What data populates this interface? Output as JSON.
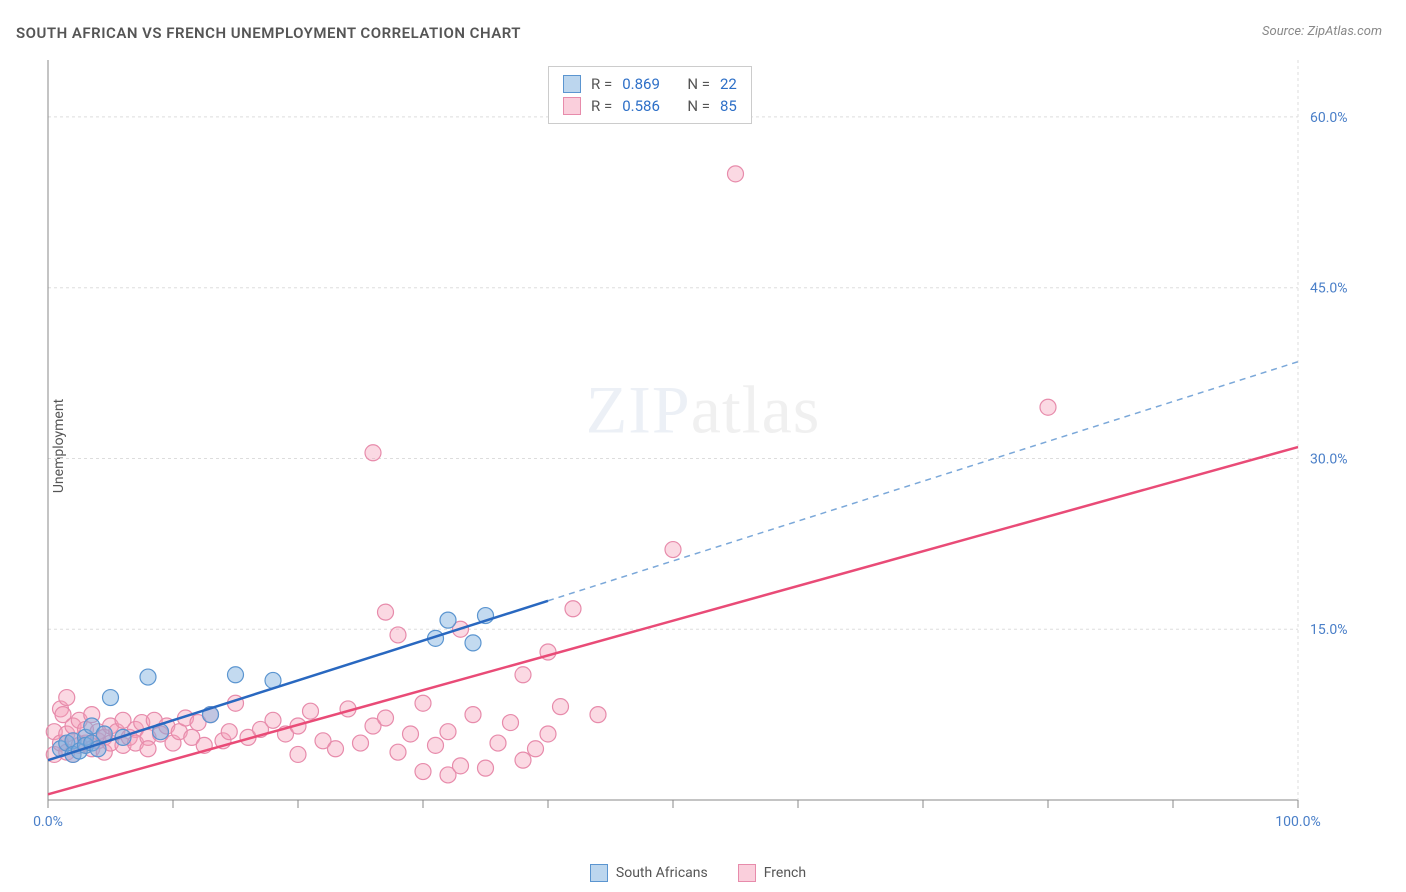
{
  "title": "SOUTH AFRICAN VS FRENCH UNEMPLOYMENT CORRELATION CHART",
  "source_label": "Source:",
  "source_name": "ZipAtlas.com",
  "y_axis_label": "Unemployment",
  "watermark_a": "ZIP",
  "watermark_b": "atlas",
  "chart": {
    "type": "scatter",
    "background_color": "#ffffff",
    "grid_color": "#dddddd",
    "xlim": [
      0,
      100
    ],
    "ylim": [
      0,
      65
    ],
    "x_ticks": [
      0,
      10,
      20,
      30,
      40,
      50,
      60,
      70,
      80,
      90,
      100
    ],
    "x_tick_labels": {
      "0": "0.0%",
      "100": "100.0%"
    },
    "y_ticks": [
      15,
      30,
      45,
      60
    ],
    "y_tick_labels": {
      "15": "15.0%",
      "30": "30.0%",
      "45": "45.0%",
      "60": "60.0%"
    },
    "series": {
      "south_africans": {
        "label": "South Africans",
        "color_fill": "rgba(122,174,222,0.45)",
        "color_stroke": "#5b95d0",
        "marker_radius": 8,
        "r_value": "0.869",
        "n_value": "22",
        "trend": {
          "x1": 0,
          "y1": 3.5,
          "x2": 40,
          "y2": 17.5,
          "color": "#2968c0",
          "dash_extend_x2": 100,
          "dash_extend_y2": 38.5
        },
        "points": [
          [
            1,
            4.5
          ],
          [
            1.5,
            5
          ],
          [
            2,
            5.2
          ],
          [
            2,
            4
          ],
          [
            2.5,
            4.3
          ],
          [
            3,
            5.5
          ],
          [
            3,
            4.8
          ],
          [
            3.5,
            5
          ],
          [
            3.5,
            6.5
          ],
          [
            4,
            4.5
          ],
          [
            4.5,
            5.8
          ],
          [
            5,
            9
          ],
          [
            6,
            5.5
          ],
          [
            8,
            10.8
          ],
          [
            9,
            6
          ],
          [
            13,
            7.5
          ],
          [
            15,
            11
          ],
          [
            18,
            10.5
          ],
          [
            31,
            14.2
          ],
          [
            32,
            15.8
          ],
          [
            34,
            13.8
          ],
          [
            35,
            16.2
          ]
        ]
      },
      "french": {
        "label": "French",
        "color_fill": "rgba(245,160,185,0.4)",
        "color_stroke": "#e78bab",
        "marker_radius": 8,
        "r_value": "0.586",
        "n_value": "85",
        "trend": {
          "x1": 0,
          "y1": 0.5,
          "x2": 100,
          "y2": 31,
          "color": "#e94b77"
        },
        "points": [
          [
            0.5,
            4
          ],
          [
            0.5,
            6
          ],
          [
            1,
            8
          ],
          [
            1,
            5
          ],
          [
            1.2,
            7.5
          ],
          [
            1.5,
            4.2
          ],
          [
            1.5,
            5.8
          ],
          [
            1.5,
            9
          ],
          [
            2,
            4
          ],
          [
            2,
            6.5
          ],
          [
            2,
            5.2
          ],
          [
            2.5,
            4.8
          ],
          [
            2.5,
            7
          ],
          [
            3,
            5
          ],
          [
            3,
            6.2
          ],
          [
            3.5,
            4.5
          ],
          [
            3.5,
            7.5
          ],
          [
            4,
            5.2
          ],
          [
            4,
            6
          ],
          [
            4.5,
            5.5
          ],
          [
            4.5,
            4.2
          ],
          [
            5,
            6.5
          ],
          [
            5,
            5
          ],
          [
            5.5,
            6
          ],
          [
            6,
            4.8
          ],
          [
            6,
            7
          ],
          [
            6.5,
            5.5
          ],
          [
            7,
            6.2
          ],
          [
            7,
            5
          ],
          [
            7.5,
            6.8
          ],
          [
            8,
            5.5
          ],
          [
            8,
            4.5
          ],
          [
            8.5,
            7
          ],
          [
            9,
            5.8
          ],
          [
            9.5,
            6.5
          ],
          [
            10,
            5
          ],
          [
            10.5,
            6
          ],
          [
            11,
            7.2
          ],
          [
            11.5,
            5.5
          ],
          [
            12,
            6.8
          ],
          [
            12.5,
            4.8
          ],
          [
            13,
            7.5
          ],
          [
            14,
            5.2
          ],
          [
            14.5,
            6
          ],
          [
            15,
            8.5
          ],
          [
            16,
            5.5
          ],
          [
            17,
            6.2
          ],
          [
            18,
            7
          ],
          [
            19,
            5.8
          ],
          [
            20,
            6.5
          ],
          [
            20,
            4
          ],
          [
            21,
            7.8
          ],
          [
            22,
            5.2
          ],
          [
            23,
            4.5
          ],
          [
            24,
            8
          ],
          [
            25,
            5
          ],
          [
            26,
            6.5
          ],
          [
            27,
            7.2
          ],
          [
            27,
            16.5
          ],
          [
            28,
            4.2
          ],
          [
            28,
            14.5
          ],
          [
            29,
            5.8
          ],
          [
            30,
            2.5
          ],
          [
            30,
            8.5
          ],
          [
            31,
            4.8
          ],
          [
            32,
            2.2
          ],
          [
            32,
            6
          ],
          [
            33,
            3
          ],
          [
            33,
            15
          ],
          [
            34,
            7.5
          ],
          [
            35,
            2.8
          ],
          [
            36,
            5
          ],
          [
            37,
            6.8
          ],
          [
            38,
            3.5
          ],
          [
            38,
            11
          ],
          [
            39,
            4.5
          ],
          [
            40,
            5.8
          ],
          [
            40,
            13
          ],
          [
            41,
            8.2
          ],
          [
            42,
            16.8
          ],
          [
            44,
            7.5
          ],
          [
            50,
            22
          ],
          [
            26,
            30.5
          ],
          [
            55,
            55
          ],
          [
            80,
            34.5
          ]
        ]
      }
    }
  },
  "stats_labels": {
    "r": "R =",
    "n": "N ="
  }
}
